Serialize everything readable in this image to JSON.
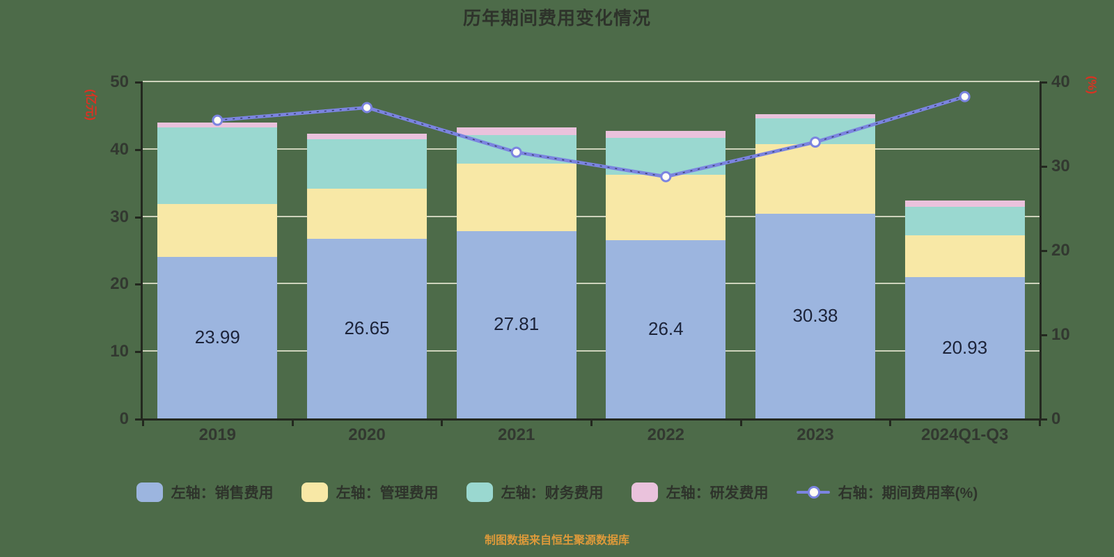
{
  "title": "历年期间费用变化情况",
  "caption": "制图数据来自恒生聚源数据库",
  "colors": {
    "background": "#4d6b49",
    "bar_sales": "#9cb5df",
    "bar_mgmt": "#f8e8a6",
    "bar_fin": "#9ad8d0",
    "bar_rnd": "#eac2dc",
    "line": "#7b84e0",
    "line_dash": "#2b3054",
    "marker_fill": "#fffef6",
    "grid": "#efeeda",
    "axis": "#23281f",
    "tick_text": "#323830",
    "title_text": "#2e332b",
    "axis_title_text": "#d93222",
    "caption_text": "#de9a3a",
    "bar_label_text": "#1c2339"
  },
  "left_axis": {
    "title": "(亿元)",
    "ticks": [
      0,
      10,
      20,
      30,
      40,
      50
    ],
    "max": 50
  },
  "right_axis": {
    "title": "(%)",
    "ticks": [
      0,
      10,
      20,
      30,
      40
    ],
    "max": 40
  },
  "legend": [
    {
      "label": "左轴：销售费用",
      "icon": "swatch",
      "color_key": "bar_sales"
    },
    {
      "label": "左轴：管理费用",
      "icon": "swatch",
      "color_key": "bar_mgmt"
    },
    {
      "label": "左轴：财务费用",
      "icon": "swatch",
      "color_key": "bar_fin"
    },
    {
      "label": "左轴：研发费用",
      "icon": "swatch",
      "color_key": "bar_rnd"
    },
    {
      "label": "右轴：期间费用率(%)",
      "icon": "line-marker",
      "color_key": "line"
    }
  ],
  "chart_data": {
    "type": "bar",
    "subtype": "stacked-bars-with-line-overlay",
    "title": "历年期间费用变化情况",
    "categories": [
      "2019",
      "2020",
      "2021",
      "2022",
      "2023",
      "2024Q1-Q3"
    ],
    "series": [
      {
        "name": "左轴：销售费用",
        "type": "bar",
        "axis": "left",
        "color_key": "bar_sales",
        "values": [
          23.99,
          26.65,
          27.81,
          26.4,
          30.38,
          20.93
        ],
        "labels": [
          "23.99",
          "26.65",
          "27.81",
          "26.4",
          "30.38",
          "20.93"
        ]
      },
      {
        "name": "左轴：管理费用",
        "type": "bar",
        "axis": "left",
        "color_key": "bar_mgmt",
        "values": [
          7.8,
          7.4,
          10.0,
          9.8,
          10.3,
          6.2
        ]
      },
      {
        "name": "左轴：财务费用",
        "type": "bar",
        "axis": "left",
        "color_key": "bar_fin",
        "values": [
          11.4,
          7.4,
          4.2,
          5.4,
          3.8,
          4.3
        ]
      },
      {
        "name": "左轴：研发费用",
        "type": "bar",
        "axis": "left",
        "color_key": "bar_rnd",
        "values": [
          0.7,
          0.8,
          1.2,
          1.1,
          0.7,
          0.9
        ]
      },
      {
        "name": "右轴：期间费用率(%)",
        "type": "line",
        "axis": "right",
        "color_key": "line",
        "values": [
          35.4,
          36.9,
          31.6,
          28.7,
          32.8,
          38.2
        ]
      }
    ],
    "xlabel": "",
    "ylabel_left": "(亿元)",
    "ylabel_right": "(%)",
    "left_ylim": [
      0,
      50
    ],
    "right_ylim": [
      0,
      40
    ],
    "grid": true,
    "legend_position": "bottom"
  }
}
